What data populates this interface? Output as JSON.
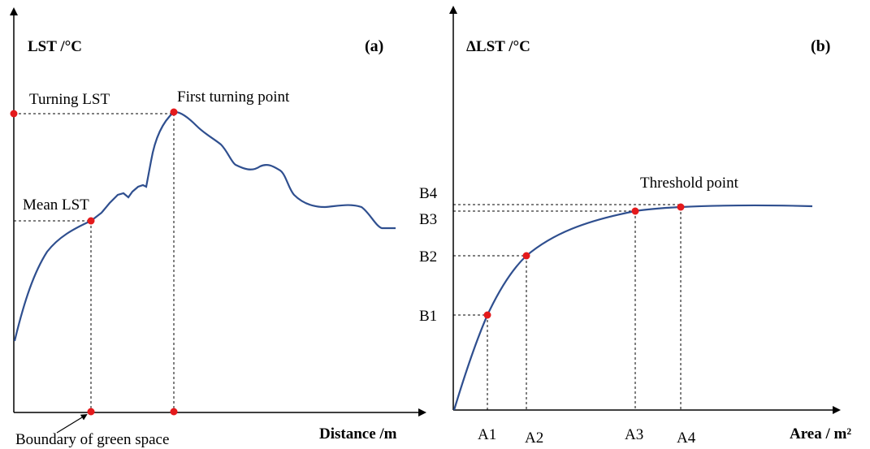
{
  "colors": {
    "curve": "#2F4F8F",
    "point": "#E41A1C",
    "axis": "#000000",
    "guide": "#000000"
  },
  "panel_a": {
    "tag": "(a)",
    "y_axis_label": "LST /°C",
    "x_axis_label": "Distance /m",
    "labels": {
      "turning_lst": "Turning LST",
      "first_turning_point": "First turning point",
      "mean_lst": "Mean LST",
      "boundary": "Boundary of green space"
    }
  },
  "panel_b": {
    "tag": "(b)",
    "y_axis_label": "ΔLST /°C",
    "x_axis_label": "Area / m²",
    "threshold_label": "Threshold point",
    "y_ticks": [
      "B1",
      "B2",
      "B3",
      "B4"
    ],
    "x_ticks": [
      "A1",
      "A2",
      "A3",
      "A4"
    ]
  }
}
